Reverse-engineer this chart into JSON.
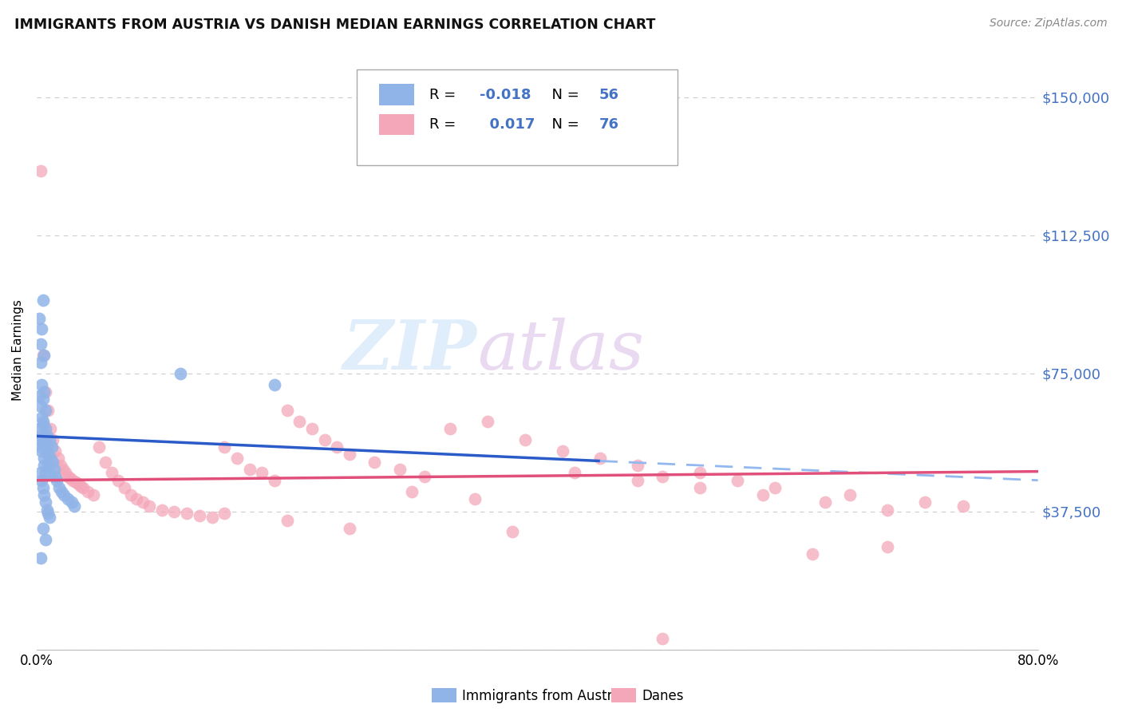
{
  "title": "IMMIGRANTS FROM AUSTRIA VS DANISH MEDIAN EARNINGS CORRELATION CHART",
  "source": "Source: ZipAtlas.com",
  "ylabel": "Median Earnings",
  "xlim": [
    0.0,
    0.8
  ],
  "ylim": [
    0,
    162500
  ],
  "yticks": [
    0,
    37500,
    75000,
    112500,
    150000
  ],
  "ytick_labels": [
    "",
    "$37,500",
    "$75,000",
    "$112,500",
    "$150,000"
  ],
  "xticks": [
    0.0,
    0.1,
    0.2,
    0.3,
    0.4,
    0.5,
    0.6,
    0.7,
    0.8
  ],
  "xtick_labels": [
    "0.0%",
    "",
    "",
    "",
    "",
    "",
    "",
    "",
    "80.0%"
  ],
  "blue_R": -0.018,
  "blue_N": 56,
  "pink_R": 0.017,
  "pink_N": 76,
  "blue_color": "#91b4e8",
  "blue_line_color": "#2a5bc8",
  "blue_dash_color": "#93b8ef",
  "pink_color": "#f4a7b9",
  "pink_line_color": "#e0507a",
  "grid_color": "#cccccc",
  "right_axis_color": "#4472c4",
  "legend_text_color": "#4472c4",
  "watermark_zip_color": "#c8dff7",
  "watermark_atlas_color": "#d8bce8",
  "bottom_blue_label": "Immigrants from Austria",
  "bottom_pink_label": "Danes",
  "blue_x": [
    0.002,
    0.003,
    0.003,
    0.004,
    0.004,
    0.005,
    0.005,
    0.005,
    0.006,
    0.006,
    0.007,
    0.007,
    0.008,
    0.008,
    0.009,
    0.009,
    0.01,
    0.01,
    0.011,
    0.012,
    0.013,
    0.014,
    0.015,
    0.016,
    0.018,
    0.02,
    0.022,
    0.025,
    0.028,
    0.03,
    0.003,
    0.004,
    0.005,
    0.006,
    0.002,
    0.003,
    0.004,
    0.005,
    0.006,
    0.007,
    0.008,
    0.009,
    0.01,
    0.005,
    0.007,
    0.003,
    0.115,
    0.19,
    0.005,
    0.004,
    0.003,
    0.002,
    0.006,
    0.007,
    0.004,
    0.003
  ],
  "blue_y": [
    90000,
    83000,
    78000,
    87000,
    72000,
    95000,
    68000,
    62000,
    80000,
    70000,
    65000,
    60000,
    58000,
    55000,
    53000,
    50000,
    57000,
    48000,
    52000,
    55000,
    51000,
    49000,
    47000,
    46000,
    44000,
    43000,
    42000,
    41000,
    40000,
    39000,
    58000,
    54000,
    56000,
    52000,
    60000,
    48000,
    46000,
    44000,
    42000,
    40000,
    38000,
    37000,
    36000,
    33000,
    30000,
    25000,
    75000,
    72000,
    61000,
    63000,
    66000,
    69000,
    50000,
    48000,
    55000,
    57000
  ],
  "pink_x": [
    0.003,
    0.005,
    0.007,
    0.009,
    0.011,
    0.013,
    0.015,
    0.017,
    0.019,
    0.021,
    0.023,
    0.025,
    0.027,
    0.029,
    0.031,
    0.033,
    0.035,
    0.037,
    0.041,
    0.045,
    0.05,
    0.055,
    0.06,
    0.065,
    0.07,
    0.075,
    0.08,
    0.085,
    0.09,
    0.1,
    0.11,
    0.12,
    0.13,
    0.14,
    0.15,
    0.16,
    0.17,
    0.18,
    0.19,
    0.2,
    0.21,
    0.22,
    0.23,
    0.24,
    0.25,
    0.27,
    0.29,
    0.31,
    0.33,
    0.36,
    0.39,
    0.42,
    0.45,
    0.48,
    0.5,
    0.53,
    0.56,
    0.59,
    0.62,
    0.65,
    0.68,
    0.71,
    0.74,
    0.38,
    0.43,
    0.48,
    0.53,
    0.58,
    0.63,
    0.68,
    0.15,
    0.2,
    0.25,
    0.3,
    0.35,
    0.5
  ],
  "pink_y": [
    130000,
    80000,
    70000,
    65000,
    60000,
    57000,
    54000,
    52000,
    50000,
    49000,
    48000,
    47000,
    46500,
    46000,
    45500,
    45000,
    44500,
    44000,
    43000,
    42000,
    55000,
    51000,
    48000,
    46000,
    44000,
    42000,
    41000,
    40000,
    39000,
    38000,
    37500,
    37000,
    36500,
    36000,
    55000,
    52000,
    49000,
    48000,
    46000,
    65000,
    62000,
    60000,
    57000,
    55000,
    53000,
    51000,
    49000,
    47000,
    60000,
    62000,
    57000,
    54000,
    52000,
    50000,
    3000,
    48000,
    46000,
    44000,
    26000,
    42000,
    28000,
    40000,
    39000,
    32000,
    48000,
    46000,
    44000,
    42000,
    40000,
    38000,
    37000,
    35000,
    33000,
    43000,
    41000,
    47000
  ]
}
